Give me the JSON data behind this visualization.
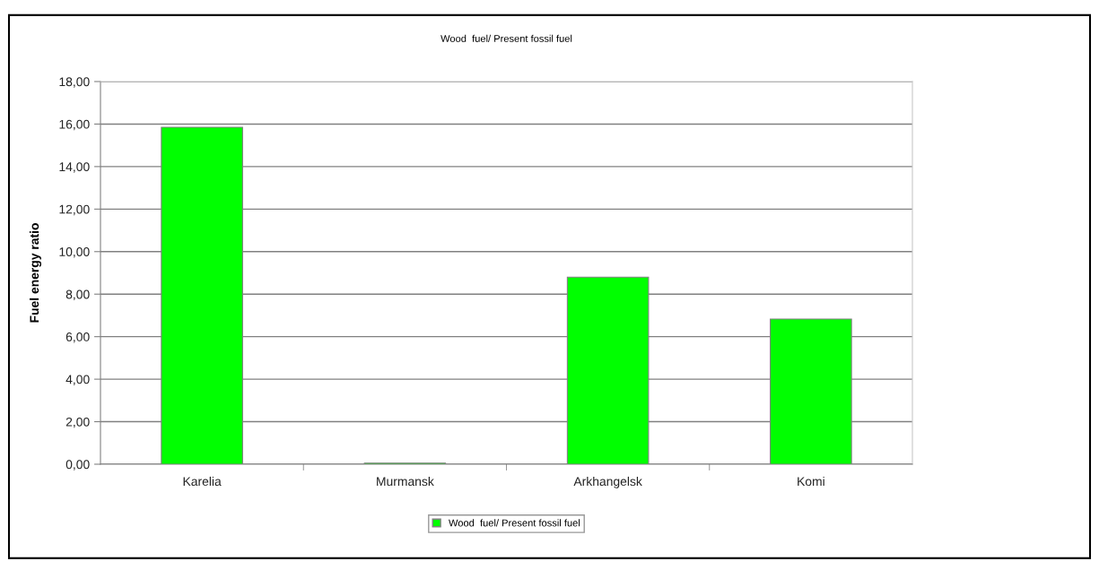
{
  "chart_data": {
    "type": "bar",
    "title": "Wood  fuel/ Present fossil fuel",
    "ylabel": "Fuel energy ratio",
    "categories": [
      "Karelia",
      "Murmansk",
      "Arkhangelsk",
      "Komi"
    ],
    "series": [
      {
        "name": "Wood  fuel/ Present fossil fuel",
        "color": "#00ff00",
        "values": [
          15.85,
          0.05,
          8.8,
          6.83
        ]
      }
    ],
    "ylim": [
      0,
      18
    ],
    "yticks": [
      {
        "value": 0,
        "label": "0,00"
      },
      {
        "value": 2,
        "label": "2,00"
      },
      {
        "value": 4,
        "label": "4,00"
      },
      {
        "value": 6,
        "label": "6,00"
      },
      {
        "value": 8,
        "label": "8,00"
      },
      {
        "value": 10,
        "label": "10,00"
      },
      {
        "value": 12,
        "label": "12,00"
      },
      {
        "value": 14,
        "label": "14,00"
      },
      {
        "value": 16,
        "label": "16,00"
      },
      {
        "value": 18,
        "label": "18,00"
      }
    ],
    "grid": "y",
    "legend": "bottom"
  }
}
